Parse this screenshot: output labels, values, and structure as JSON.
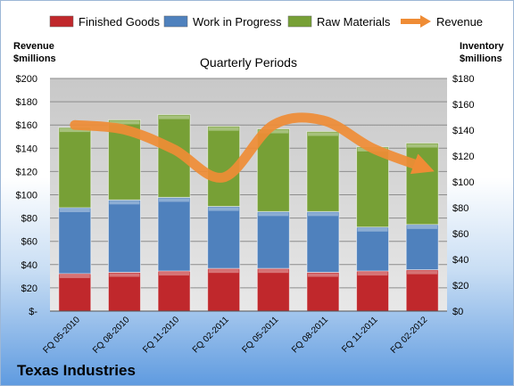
{
  "chart_data": {
    "type": "bar",
    "stacked": true,
    "title": "Quarterly Periods",
    "company": "Texas Industries",
    "ylabel_left": "Revenue\n$millions",
    "ylabel_right": "Inventory\n$millions",
    "categories": [
      "FQ 05-2010",
      "FQ 08-2010",
      "FQ 11-2010",
      "FQ 02-2011",
      "FQ 05-2011",
      "FQ 08-2011",
      "FQ 11-2011",
      "FQ 02-2012"
    ],
    "left_axis": {
      "range": [
        0,
        200
      ],
      "ticks": [
        0,
        20,
        40,
        60,
        80,
        100,
        120,
        140,
        160,
        180,
        200
      ],
      "tick_labels": [
        "$-",
        "$20",
        "$40",
        "$60",
        "$80",
        "$100",
        "$120",
        "$140",
        "$160",
        "$180",
        "$200"
      ]
    },
    "right_axis": {
      "range": [
        0,
        180
      ],
      "ticks": [
        0,
        20,
        40,
        60,
        80,
        100,
        120,
        140,
        160,
        180
      ],
      "tick_labels": [
        "$0",
        "$20",
        "$40",
        "$60",
        "$80",
        "$100",
        "$120",
        "$140",
        "$160",
        "$180"
      ]
    },
    "series": [
      {
        "name": "Finished Goods",
        "axis": "right",
        "color": "#c0282c",
        "values": [
          29,
          30,
          31,
          33,
          33,
          30,
          31,
          32
        ]
      },
      {
        "name": "Work in Progress",
        "axis": "right",
        "color": "#4f81bd",
        "values": [
          51,
          56,
          57,
          48,
          44,
          47,
          34,
          35
        ]
      },
      {
        "name": "Raw Materials",
        "axis": "right",
        "color": "#77a036",
        "values": [
          62,
          62,
          64,
          62,
          64,
          62,
          62,
          63
        ]
      },
      {
        "name": "Revenue",
        "axis": "left",
        "type": "line",
        "color": "#ef8c35",
        "values": [
          160,
          156,
          139,
          115,
          160,
          164,
          140,
          124
        ]
      }
    ],
    "legend_position": "top",
    "grid": true
  }
}
